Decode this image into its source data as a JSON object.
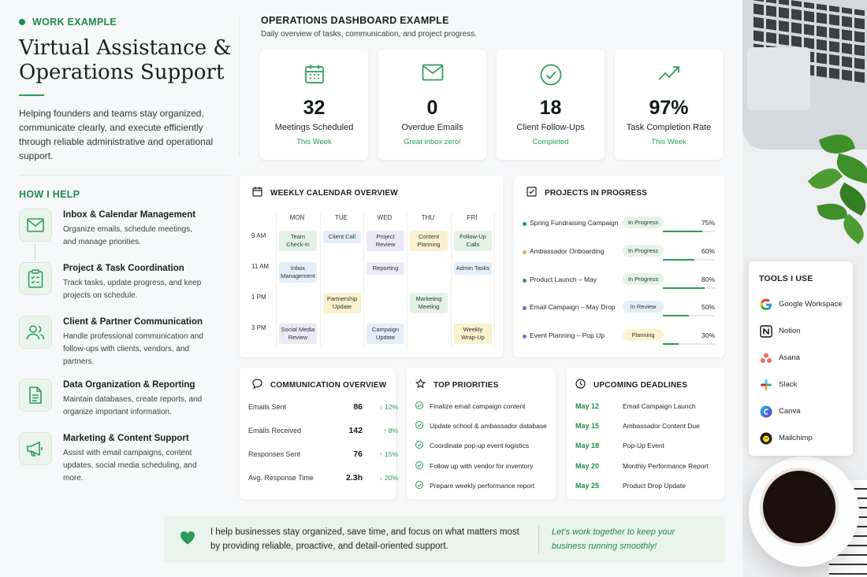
{
  "colors": {
    "accent": "#1f8a4c",
    "accent_light": "#e9f4ec"
  },
  "left": {
    "tag": "WORK EXAMPLE",
    "title": "Virtual Assistance & Operations Support",
    "intro": "Helping founders and teams stay organized, communicate clearly, and execute efficiently through reliable administrative and operational support.",
    "help_heading": "HOW I HELP",
    "help_items": [
      {
        "icon": "mail-icon",
        "title": "Inbox & Calendar Management",
        "desc": "Organize emails, schedule meetings, and manage priorities."
      },
      {
        "icon": "clipboard-checklist-icon",
        "title": "Project & Task Coordination",
        "desc": "Track tasks, update progress, and keep projects on schedule."
      },
      {
        "icon": "users-icon",
        "title": "Client & Partner Communication",
        "desc": "Handle professional communication and follow-ups with clients, vendors, and partners."
      },
      {
        "icon": "document-icon",
        "title": "Data Organization & Reporting",
        "desc": "Maintain databases, create reports, and organize important information."
      },
      {
        "icon": "megaphone-icon",
        "title": "Marketing & Content Support",
        "desc": "Assist with email campaigns, content updates, social media scheduling, and more."
      }
    ]
  },
  "dashboard": {
    "heading": "OPERATIONS DASHBOARD EXAMPLE",
    "subheading": "Daily overview of tasks, communication, and project progress.",
    "kpis": [
      {
        "icon": "calendar-icon",
        "value": "32",
        "label": "Meetings Scheduled",
        "sub": "This Week"
      },
      {
        "icon": "mail-icon",
        "value": "0",
        "label": "Overdue Emails",
        "sub": "Great inbox zero!"
      },
      {
        "icon": "check-circle-icon",
        "value": "18",
        "label": "Client Follow-Ups",
        "sub": "Completed"
      },
      {
        "icon": "trend-up-icon",
        "value": "97%",
        "label": "Task Completion Rate",
        "sub": "This Week"
      }
    ]
  },
  "calendar": {
    "title": "WEEKLY CALENDAR OVERVIEW",
    "days": [
      "MON",
      "TUE",
      "WED",
      "THU",
      "FRI"
    ],
    "times": [
      "9 AM",
      "11 AM",
      "1 PM",
      "3 PM"
    ],
    "events": [
      {
        "label": "Team Check-in",
        "color": "green"
      },
      {
        "label": "Client Call",
        "color": "blue"
      },
      {
        "label": "Project Review",
        "color": "purple"
      },
      {
        "label": "Content Planning",
        "color": "yellow"
      },
      {
        "label": "Follow-Up Calls",
        "color": "green"
      },
      {
        "label": "Inbox Management",
        "color": "blue"
      },
      {
        "label": "Reporting",
        "color": "purple"
      },
      {
        "label": "Admin Tasks",
        "color": "blue"
      },
      {
        "label": "Partnership Update",
        "color": "yellow"
      },
      {
        "label": "Marketing Meeting",
        "color": "green"
      },
      {
        "label": "Social Media Review",
        "color": "purple"
      },
      {
        "label": "Campaign Update",
        "color": "blue"
      },
      {
        "label": "Weekly Wrap-Up",
        "color": "yellow"
      }
    ]
  },
  "projects": {
    "title": "PROJECTS IN PROGRESS",
    "items": [
      {
        "name": "Spring Fundraising Campaign",
        "status": "In Progress",
        "percent": "75%",
        "progress": 75,
        "dot": "#2e9a5b",
        "badge_color": "#e3f3e6"
      },
      {
        "name": "Ambassador Onboarding",
        "status": "In Progress",
        "percent": "60%",
        "progress": 60,
        "dot": "#c9b94a",
        "badge_color": "#e3f3e6"
      },
      {
        "name": "Product Launch – May",
        "status": "In Progress",
        "percent": "80%",
        "progress": 80,
        "dot": "#2e9a5b",
        "badge_color": "#e3f3e6"
      },
      {
        "name": "Email Campaign – May Drop",
        "status": "In Review",
        "percent": "50%",
        "progress": 50,
        "dot": "#6a6fc9",
        "badge_color": "#e4eef8"
      },
      {
        "name": "Event Planning – Pop Up",
        "status": "Planning",
        "percent": "30%",
        "progress": 30,
        "dot": "#6a6fc9",
        "badge_color": "#fbf1cf"
      }
    ]
  },
  "communication": {
    "title": "COMMUNICATION OVERVIEW",
    "rows": [
      {
        "label": "Emails Sent",
        "value": "86",
        "delta": "↑ 12%"
      },
      {
        "label": "Emails Received",
        "value": "142",
        "delta": "↑ 8%"
      },
      {
        "label": "Responses Sent",
        "value": "76",
        "delta": "↑ 15%"
      },
      {
        "label": "Avg. Response Time",
        "value": "2.3h",
        "delta": "↓ 20%"
      }
    ]
  },
  "priorities": {
    "title": "TOP PRIORITIES",
    "items": [
      "Finalize email campaign content",
      "Update school & ambassador database",
      "Coordinate pop-up event logistics",
      "Follow up with vendor for inventory",
      "Prepare weekly performance report"
    ]
  },
  "deadlines": {
    "title": "UPCOMING DEADLINES",
    "items": [
      {
        "date": "May 12",
        "task": "Email Campaign Launch"
      },
      {
        "date": "May 15",
        "task": "Ambassador Content Due"
      },
      {
        "date": "May 18",
        "task": "Pop-Up Event"
      },
      {
        "date": "May 20",
        "task": "Monthly Performance Report"
      },
      {
        "date": "May 25",
        "task": "Product Drop Update"
      }
    ]
  },
  "banner": {
    "text": "I help businesses stay organized, save time, and focus on what matters most by providing reliable, proactive, and detail-oriented support.",
    "quote": "Let’s work together to keep your business running smoothly!"
  },
  "tools": {
    "title": "TOOLS I USE",
    "items": [
      {
        "name": "Google Workspace",
        "icon": "google-icon"
      },
      {
        "name": "Notion",
        "icon": "notion-icon"
      },
      {
        "name": "Asana",
        "icon": "asana-icon"
      },
      {
        "name": "Slack",
        "icon": "slack-icon"
      },
      {
        "name": "Canva",
        "icon": "canva-icon"
      },
      {
        "name": "Mailchimp",
        "icon": "mailchimp-icon"
      }
    ]
  }
}
